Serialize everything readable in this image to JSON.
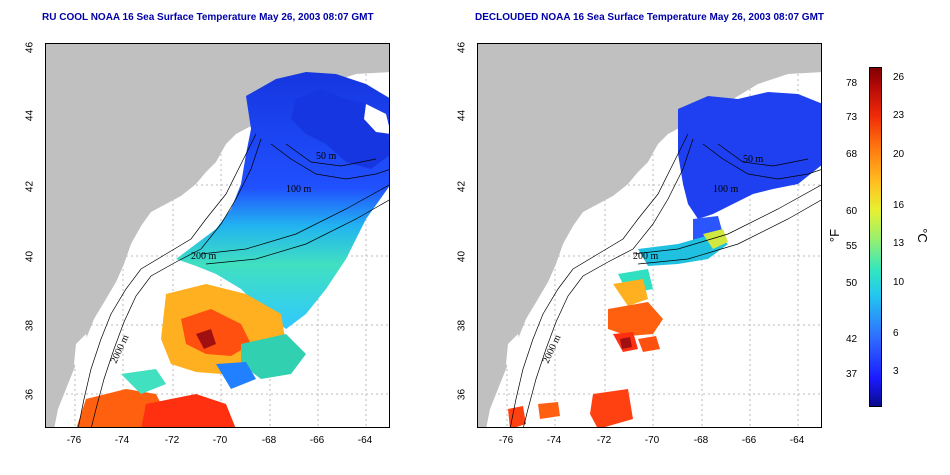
{
  "left_panel": {
    "title": "RU COOL NOAA 16 Sea Surface Temperature May 26, 2003 08:07 GMT"
  },
  "right_panel": {
    "title": "DECLOUDED NOAA 16 Sea Surface Temperature May 26, 2003 08:07 GMT"
  },
  "axes": {
    "y_ticks": [
      "46",
      "44",
      "42",
      "40",
      "38",
      "36"
    ],
    "x_ticks": [
      "-76",
      "-74",
      "-72",
      "-70",
      "-68",
      "-66",
      "-64"
    ]
  },
  "isobaths": {
    "labels": [
      "50 m",
      "100 m",
      "200 m",
      "2000 m"
    ]
  },
  "colorbar": {
    "fahrenheit_labels": [
      "78",
      "73",
      "68",
      "60",
      "55",
      "50",
      "42",
      "37"
    ],
    "celsius_labels": [
      "26",
      "23",
      "20",
      "16",
      "13",
      "10",
      "6",
      "3"
    ],
    "fahrenheit_unit": "°F",
    "celsius_unit": "°C"
  },
  "colors": {
    "land": "#c0c0c0",
    "title": "#0000a8",
    "cold": "#1a3cff",
    "warm": "#ff3010"
  }
}
